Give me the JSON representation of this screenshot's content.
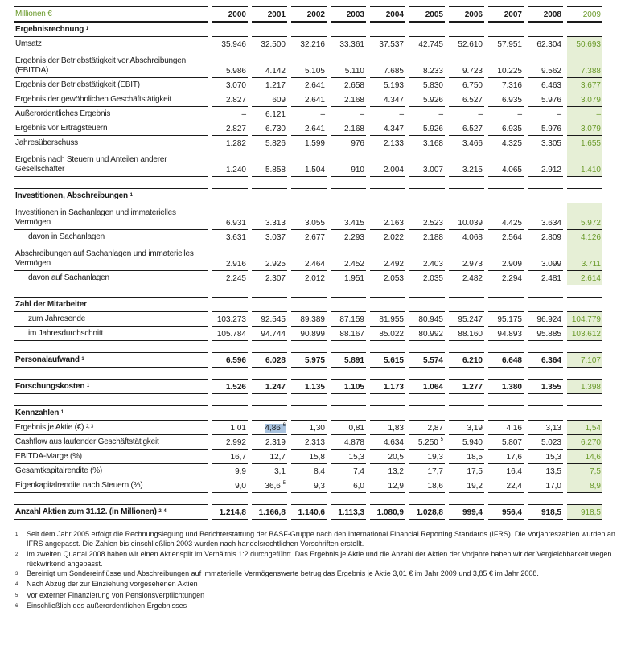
{
  "header": {
    "unit_label": "Millionen €",
    "years": [
      "2000",
      "2001",
      "2002",
      "2003",
      "2004",
      "2005",
      "2006",
      "2007",
      "2008",
      "2009"
    ]
  },
  "colors": {
    "accent_green": "#6a9a2a",
    "highlight_column": "#e6efd6",
    "selection": "#a9c3df"
  },
  "groups": [
    {
      "title": "Ergebnisrechnung",
      "title_note": "1",
      "rows": [
        {
          "label": "Umsatz",
          "values": [
            "35.946",
            "32.500",
            "32.216",
            "33.361",
            "37.537",
            "42.745",
            "52.610",
            "57.951",
            "62.304",
            "50.693"
          ]
        },
        {
          "label": "Ergebnis der Betriebstätigkeit vor Abschreibungen (EBITDA)",
          "two_line": true,
          "values": [
            "5.986",
            "4.142",
            "5.105",
            "5.110",
            "7.685",
            "8.233",
            "9.723",
            "10.225",
            "9.562",
            "7.388"
          ]
        },
        {
          "label": "Ergebnis der Betriebstätigkeit (EBIT)",
          "values": [
            "3.070",
            "1.217",
            "2.641",
            "2.658",
            "5.193",
            "5.830",
            "6.750",
            "7.316",
            "6.463",
            "3.677"
          ]
        },
        {
          "label": "Ergebnis der gewöhnlichen Geschäftstätigkeit",
          "values": [
            "2.827",
            "609",
            "2.641",
            "2.168",
            "4.347",
            "5.926",
            "6.527",
            "6.935",
            "5.976",
            "3.079"
          ]
        },
        {
          "label": "Außerordentliches Ergebnis",
          "values": [
            "–",
            "6.121",
            "–",
            "–",
            "–",
            "–",
            "–",
            "–",
            "–",
            "–"
          ]
        },
        {
          "label": "Ergebnis vor Ertragsteuern",
          "values": [
            "2.827",
            "6.730",
            "2.641",
            "2.168",
            "4.347",
            "5.926",
            "6.527",
            "6.935",
            "5.976",
            "3.079"
          ]
        },
        {
          "label": "Jahresüberschuss",
          "values": [
            "1.282",
            "5.826",
            "1.599",
            "976",
            "2.133",
            "3.168",
            "3.466",
            "4.325",
            "3.305",
            "1.655"
          ]
        },
        {
          "label": "Ergebnis nach Steuern und Anteilen anderer Gesellschafter",
          "two_line": true,
          "values": [
            "1.240",
            "5.858",
            "1.504",
            "910",
            "2.004",
            "3.007",
            "3.215",
            "4.065",
            "2.912",
            "1.410"
          ]
        }
      ]
    },
    {
      "title": "Investitionen, Abschreibungen",
      "title_note": "1",
      "rows": [
        {
          "label": "Investitionen in Sachanlagen und immaterielles Vermögen",
          "two_line": true,
          "values": [
            "6.931",
            "3.313",
            "3.055",
            "3.415",
            "2.163",
            "2.523",
            "10.039",
            "4.425",
            "3.634",
            "5.972"
          ]
        },
        {
          "label": "davon in Sachanlagen",
          "indent": true,
          "values": [
            "3.631",
            "3.037",
            "2.677",
            "2.293",
            "2.022",
            "2.188",
            "4.068",
            "2.564",
            "2.809",
            "4.126"
          ]
        },
        {
          "label": "Abschreibungen auf Sachanlagen und immaterielles Vermögen",
          "two_line": true,
          "values": [
            "2.916",
            "2.925",
            "2.464",
            "2.452",
            "2.492",
            "2.403",
            "2.973",
            "2.909",
            "3.099",
            "3.711"
          ]
        },
        {
          "label": "davon auf Sachanlagen",
          "indent": true,
          "values": [
            "2.245",
            "2.307",
            "2.012",
            "1.951",
            "2.053",
            "2.035",
            "2.482",
            "2.294",
            "2.481",
            "2.614"
          ]
        }
      ]
    },
    {
      "title": "Zahl der Mitarbeiter",
      "rows": [
        {
          "label": "zum Jahresende",
          "indent": true,
          "values": [
            "103.273",
            "92.545",
            "89.389",
            "87.159",
            "81.955",
            "80.945",
            "95.247",
            "95.175",
            "96.924",
            "104.779"
          ]
        },
        {
          "label": "im Jahresdurchschnitt",
          "indent": true,
          "values": [
            "105.784",
            "94.744",
            "90.899",
            "88.167",
            "85.022",
            "80.992",
            "88.160",
            "94.893",
            "95.885",
            "103.612"
          ]
        }
      ]
    },
    {
      "title_row": {
        "label": "Personalaufwand",
        "note": "1",
        "bold": true,
        "values": [
          "6.596",
          "6.028",
          "5.975",
          "5.891",
          "5.615",
          "5.574",
          "6.210",
          "6.648",
          "6.364",
          "7.107"
        ]
      }
    },
    {
      "title_row": {
        "label": "Forschungskosten",
        "note": "1",
        "bold": true,
        "values": [
          "1.526",
          "1.247",
          "1.135",
          "1.105",
          "1.173",
          "1.064",
          "1.277",
          "1.380",
          "1.355",
          "1.398"
        ]
      }
    },
    {
      "title": "Kennzahlen",
      "title_note": "1",
      "rows": [
        {
          "label": "Ergebnis je Aktie (€)",
          "note": "2, 3",
          "values": [
            "1,01",
            "4,86",
            "1,30",
            "0,81",
            "1,83",
            "2,87",
            "3,19",
            "4,16",
            "3,13",
            "1,54"
          ],
          "value_notes": {
            "1": "6"
          },
          "selected": [
            1
          ]
        },
        {
          "label": "Cashflow aus laufender Geschäftstätigkeit",
          "values": [
            "2.992",
            "2.319",
            "2.313",
            "4.878",
            "4.634",
            "5.250",
            "5.940",
            "5.807",
            "5.023",
            "6.270"
          ],
          "value_notes": {
            "5": "5"
          }
        },
        {
          "label": "EBITDA-Marge (%)",
          "values": [
            "16,7",
            "12,7",
            "15,8",
            "15,3",
            "20,5",
            "19,3",
            "18,5",
            "17,6",
            "15,3",
            "14,6"
          ]
        },
        {
          "label": "Gesamtkapitalrendite (%)",
          "values": [
            "9,9",
            "3,1",
            "8,4",
            "7,4",
            "13,2",
            "17,7",
            "17,5",
            "16,4",
            "13,5",
            "7,5"
          ]
        },
        {
          "label": "Eigenkapitalrendite nach Steuern (%)",
          "values": [
            "9,0",
            "36,6",
            "9,3",
            "6,0",
            "12,9",
            "18,6",
            "19,2",
            "22,4",
            "17,0",
            "8,9"
          ],
          "value_notes": {
            "1": "5"
          }
        }
      ]
    },
    {
      "title_row": {
        "label": "Anzahl Aktien zum 31.12. (in Millionen)",
        "note": "2, 4",
        "bold": true,
        "values": [
          "1.214,8",
          "1.166,8",
          "1.140,6",
          "1.113,3",
          "1.080,9",
          "1.028,8",
          "999,4",
          "956,4",
          "918,5",
          "918,5"
        ]
      }
    }
  ],
  "footnotes": [
    {
      "n": "1",
      "text": "Seit dem Jahr 2005 erfolgt die Rechnungslegung und Berichterstattung der BASF-Gruppe nach den International Financial Reporting Standards (IFRS). Die Vorjahreszahlen wurden an IFRS angepasst. Die Zahlen bis einschließlich 2003 wurden nach handelsrechtlichen Vorschriften erstellt."
    },
    {
      "n": "2",
      "text": "Im zweiten Quartal 2008 haben wir einen Aktiensplit im Verhältnis 1:2 durchgeführt. Das Ergebnis je Aktie und die Anzahl der Aktien der Vorjahre haben wir der Vergleichbarkeit wegen rückwirkend angepasst."
    },
    {
      "n": "3",
      "text": "Bereinigt um Sondereinflüsse und Abschreibungen auf immaterielle Vermögenswerte betrug das Ergebnis je Aktie 3,01 € im Jahr 2009 und 3,85 € im Jahr 2008."
    },
    {
      "n": "4",
      "text": "Nach Abzug der zur Einziehung vorgesehenen Aktien"
    },
    {
      "n": "5",
      "text": "Vor externer Finanzierung von Pensionsverpflichtungen"
    },
    {
      "n": "6",
      "text": "Einschließlich des außerordentlichen Ergebnisses"
    }
  ]
}
